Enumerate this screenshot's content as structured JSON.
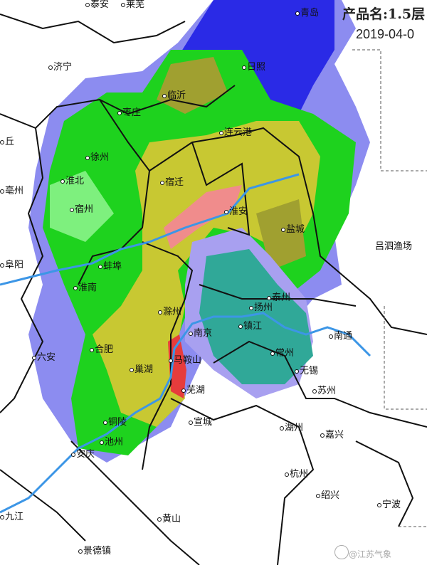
{
  "header": {
    "product_label": "产品名:1.5层",
    "datetime": "2019-04-0"
  },
  "watermark": "@江苏气象",
  "cities": [
    "泰安",
    "莱芜",
    "青岛",
    "济宁",
    "日照",
    "临沂",
    "枣庄",
    "连云港",
    "徐州",
    "丘",
    "亳州",
    "淮北",
    "宿州",
    "宿迁",
    "淮安",
    "盐城",
    "吕泗渔场",
    "阜阳",
    "蚌埠",
    "淮南",
    "滁州",
    "扬州",
    "泰州",
    "南通",
    "六安",
    "合肥",
    "南京",
    "镇江",
    "常州",
    "马鞍山",
    "巢湖",
    "无锡",
    "芜湖",
    "苏州",
    "铜陵",
    "宣城",
    "湖州",
    "嘉兴",
    "池州",
    "安庆",
    "杭州",
    "绍兴",
    "宁波",
    "黄山",
    "九江",
    "景德镇"
  ],
  "colors": {
    "light_blue": "#8c8cf0",
    "blue": "#2a2ae6",
    "light_green": "#7ef07e",
    "green": "#1ed21e",
    "dark_green": "#1a8c1a",
    "yellow": "#c8c832",
    "olive": "#a0a030",
    "pink": "#f08c8c",
    "red": "#e63c3c",
    "teal": "#30a898",
    "lavender": "#a8a0f0",
    "river": "#3c96e6"
  }
}
